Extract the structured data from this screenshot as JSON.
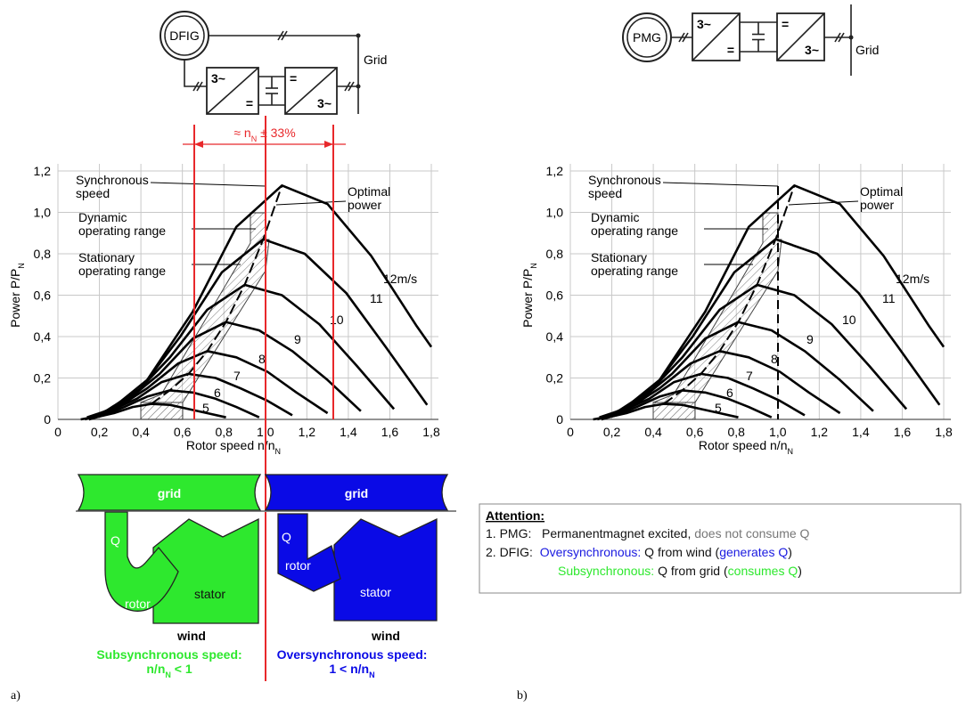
{
  "chart_data": [
    {
      "type": "line",
      "x_label": {
        "text": "Rotor speed n/n",
        "sub": "N"
      },
      "y_label": {
        "text": "Power P/P",
        "sub": "N"
      },
      "xlim": [
        0,
        1.8
      ],
      "ylim": [
        0,
        1.2
      ],
      "xticks": [
        0,
        {
          "value": 0.2,
          "label": "0,2"
        },
        {
          "value": 0.4,
          "label": "0,4"
        },
        {
          "value": 0.6,
          "label": "0,6"
        },
        {
          "value": 0.8,
          "label": "0,8"
        },
        {
          "value": 1.0,
          "label": "1,0"
        },
        {
          "value": 1.2,
          "label": "1,2"
        },
        {
          "value": 1.4,
          "label": "1,4"
        },
        {
          "value": 1.6,
          "label": "1,6"
        },
        {
          "value": 1.8,
          "label": "1,8"
        }
      ],
      "yticks": [
        0,
        {
          "value": 0.2,
          "label": "0,2"
        },
        {
          "value": 0.4,
          "label": "0,4"
        },
        {
          "value": 0.6,
          "label": "0,6"
        },
        {
          "value": 0.8,
          "label": "0,8"
        },
        {
          "value": 1.0,
          "label": "1,0"
        },
        {
          "value": 1.2,
          "label": "1,2"
        }
      ],
      "grid": true,
      "series": [
        {
          "name": "12m/s",
          "color": "#000000",
          "x": [
            0.15,
            0.22,
            0.43,
            0.65,
            0.86,
            1.08,
            1.3,
            1.51,
            1.73,
            1.8
          ],
          "values": [
            0,
            0.02,
            0.19,
            0.52,
            0.93,
            1.13,
            1.04,
            0.79,
            0.45,
            0.35
          ]
        },
        {
          "name": "11",
          "color": "#000000",
          "x": [
            0.15,
            0.2,
            0.4,
            0.59,
            0.79,
            0.99,
            1.19,
            1.39,
            1.58,
            1.78
          ],
          "values": [
            0,
            0.02,
            0.15,
            0.4,
            0.71,
            0.87,
            0.8,
            0.61,
            0.35,
            0.07
          ]
        },
        {
          "name": "10",
          "color": "#000000",
          "x": [
            0.18,
            0.36,
            0.54,
            0.72,
            0.9,
            1.08,
            1.26,
            1.44,
            1.62
          ],
          "values": [
            0.01,
            0.11,
            0.3,
            0.53,
            0.65,
            0.6,
            0.46,
            0.26,
            0.05
          ]
        },
        {
          "name": "9",
          "color": "#000000",
          "x": [
            0.16,
            0.32,
            0.49,
            0.65,
            0.81,
            0.97,
            1.13,
            1.3,
            1.46
          ],
          "values": [
            0.01,
            0.08,
            0.22,
            0.39,
            0.47,
            0.43,
            0.33,
            0.19,
            0.04
          ]
        },
        {
          "name": "8",
          "color": "#000000",
          "x": [
            0.14,
            0.29,
            0.43,
            0.58,
            0.72,
            0.86,
            1.01,
            1.15,
            1.3
          ],
          "values": [
            0.01,
            0.06,
            0.15,
            0.27,
            0.33,
            0.3,
            0.23,
            0.13,
            0.03
          ]
        },
        {
          "name": "7",
          "color": "#000000",
          "x": [
            0.13,
            0.25,
            0.38,
            0.5,
            0.63,
            0.76,
            0.88,
            1.01,
            1.13
          ],
          "values": [
            0,
            0.04,
            0.1,
            0.18,
            0.22,
            0.2,
            0.15,
            0.09,
            0.02
          ]
        },
        {
          "name": "6",
          "color": "#000000",
          "x": [
            0.11,
            0.22,
            0.32,
            0.43,
            0.54,
            0.65,
            0.76,
            0.86,
            0.97
          ],
          "values": [
            0,
            0.02,
            0.06,
            0.11,
            0.14,
            0.13,
            0.1,
            0.06,
            0.01
          ]
        },
        {
          "name": "5",
          "color": "#000000",
          "x": [
            0.18,
            0.27,
            0.36,
            0.45,
            0.54,
            0.63,
            0.72,
            0.81
          ],
          "values": [
            0.01,
            0.03,
            0.06,
            0.075,
            0.07,
            0.05,
            0.03,
            0.01
          ]
        }
      ],
      "annotations": {
        "synchronous_speed": [
          "Synchronous",
          "speed"
        ],
        "optimal_power": [
          "Optimal",
          "power"
        ],
        "dynamic_range": [
          "Dynamic",
          "operating range"
        ],
        "stationary_range": [
          "Stationary",
          "operating range"
        ]
      }
    },
    {
      "type": "line",
      "x_label": {
        "text": "Rotor speed n/n",
        "sub": "N"
      },
      "y_label": {
        "text": "Power P/P",
        "sub": "N"
      },
      "xlim": [
        0,
        1.8
      ],
      "ylim": [
        0,
        1.2
      ],
      "xticks": [
        0,
        {
          "value": 0.2,
          "label": "0,2"
        },
        {
          "value": 0.4,
          "label": "0,4"
        },
        {
          "value": 0.6,
          "label": "0,6"
        },
        {
          "value": 0.8,
          "label": "0,8"
        },
        {
          "value": 1.0,
          "label": "1,0"
        },
        {
          "value": 1.2,
          "label": "1,2"
        },
        {
          "value": 1.4,
          "label": "1,4"
        },
        {
          "value": 1.6,
          "label": "1,6"
        },
        {
          "value": 1.8,
          "label": "1,8"
        }
      ],
      "yticks": [
        0,
        {
          "value": 0.2,
          "label": "0,2"
        },
        {
          "value": 0.4,
          "label": "0,4"
        },
        {
          "value": 0.6,
          "label": "0,6"
        },
        {
          "value": 0.8,
          "label": "0,8"
        },
        {
          "value": 1.0,
          "label": "1,0"
        },
        {
          "value": 1.2,
          "label": "1,2"
        }
      ],
      "grid": true,
      "series": [
        {
          "name": "12m/s",
          "color": "#000000",
          "x": [
            0.15,
            0.22,
            0.43,
            0.65,
            0.86,
            1.08,
            1.3,
            1.51,
            1.73,
            1.8
          ],
          "values": [
            0,
            0.02,
            0.19,
            0.52,
            0.93,
            1.13,
            1.04,
            0.79,
            0.45,
            0.35
          ]
        },
        {
          "name": "11",
          "color": "#000000",
          "x": [
            0.15,
            0.2,
            0.4,
            0.59,
            0.79,
            0.99,
            1.19,
            1.39,
            1.58,
            1.78
          ],
          "values": [
            0,
            0.02,
            0.15,
            0.4,
            0.71,
            0.87,
            0.8,
            0.61,
            0.35,
            0.07
          ]
        },
        {
          "name": "10",
          "color": "#000000",
          "x": [
            0.18,
            0.36,
            0.54,
            0.72,
            0.9,
            1.08,
            1.26,
            1.44,
            1.62
          ],
          "values": [
            0.01,
            0.11,
            0.3,
            0.53,
            0.65,
            0.6,
            0.46,
            0.26,
            0.05
          ]
        },
        {
          "name": "9",
          "color": "#000000",
          "x": [
            0.16,
            0.32,
            0.49,
            0.65,
            0.81,
            0.97,
            1.13,
            1.3,
            1.46
          ],
          "values": [
            0.01,
            0.08,
            0.22,
            0.39,
            0.47,
            0.43,
            0.33,
            0.19,
            0.04
          ]
        },
        {
          "name": "8",
          "color": "#000000",
          "x": [
            0.14,
            0.29,
            0.43,
            0.58,
            0.72,
            0.86,
            1.01,
            1.15,
            1.3
          ],
          "values": [
            0.01,
            0.06,
            0.15,
            0.27,
            0.33,
            0.3,
            0.23,
            0.13,
            0.03
          ]
        },
        {
          "name": "7",
          "color": "#000000",
          "x": [
            0.13,
            0.25,
            0.38,
            0.5,
            0.63,
            0.76,
            0.88,
            1.01,
            1.13
          ],
          "values": [
            0,
            0.04,
            0.1,
            0.18,
            0.22,
            0.2,
            0.15,
            0.09,
            0.02
          ]
        },
        {
          "name": "6",
          "color": "#000000",
          "x": [
            0.11,
            0.22,
            0.32,
            0.43,
            0.54,
            0.65,
            0.76,
            0.86,
            0.97
          ],
          "values": [
            0,
            0.02,
            0.06,
            0.11,
            0.14,
            0.13,
            0.1,
            0.06,
            0.01
          ]
        },
        {
          "name": "5",
          "color": "#000000",
          "x": [
            0.18,
            0.27,
            0.36,
            0.45,
            0.54,
            0.63,
            0.72,
            0.81
          ],
          "values": [
            0.01,
            0.03,
            0.06,
            0.075,
            0.07,
            0.05,
            0.03,
            0.01
          ]
        }
      ],
      "annotations": {
        "synchronous_speed": [
          "Synchronous",
          "speed"
        ],
        "optimal_power": [
          "Optimal",
          "power"
        ],
        "dynamic_range": [
          "Dynamic",
          "operating range"
        ],
        "stationary_range": [
          "Stationary",
          "operating range"
        ]
      }
    }
  ],
  "diagram_a": {
    "machine": "DFIG",
    "converter_1": [
      "3~",
      "="
    ],
    "converter_2": [
      "=",
      "3~"
    ],
    "grid": "Grid",
    "speed_range": {
      "pre": "≈ n",
      "sub": "N",
      "post": " ± 33%"
    },
    "color": "#e8282b"
  },
  "diagram_b": {
    "machine": "PMG",
    "converter_1": [
      "3~",
      "="
    ],
    "converter_2": [
      "=",
      "3~"
    ],
    "grid": "Grid"
  },
  "power_flow": {
    "subsynchronous": {
      "grid": "grid",
      "q": "Q",
      "rotor": "rotor",
      "stator": "stator",
      "wind": "wind",
      "caption": "Subsynchronous speed:",
      "condition": {
        "pre": "n/n",
        "sub": "N",
        "post": " < 1"
      },
      "color": "#2ee82e"
    },
    "oversynchronous": {
      "grid": "grid",
      "q": "Q",
      "rotor": "rotor",
      "stator": "stator",
      "wind": "wind",
      "caption": "Oversynchronous speed:",
      "condition": {
        "pre": "1 < n/n",
        "sub": "N"
      },
      "color": "#0a0ae6"
    }
  },
  "attention": {
    "title": "Attention:",
    "lines": [
      [
        {
          "text": "1. PMG:   Permanentmagnet excited, ",
          "color": "#111111"
        },
        {
          "text": "does not consume Q",
          "color": "#777777"
        }
      ],
      [
        {
          "text": "2. DFIG:  ",
          "color": "#111111"
        },
        {
          "text": "Oversynchronous:",
          "color": "#1a1ae0"
        },
        {
          "text": " Q from wind (",
          "color": "#111111"
        },
        {
          "text": "generates Q",
          "color": "#1a1ae0"
        },
        {
          "text": ")",
          "color": "#111111"
        }
      ],
      [
        {
          "text": "Subsynchronous:",
          "color": "#2ee82e"
        },
        {
          "text": " Q from grid (",
          "color": "#111111"
        },
        {
          "text": "consumes Q",
          "color": "#2ee82e"
        },
        {
          "text": ")",
          "color": "#111111"
        }
      ]
    ]
  },
  "panel_labels": [
    "a)",
    "b)"
  ]
}
